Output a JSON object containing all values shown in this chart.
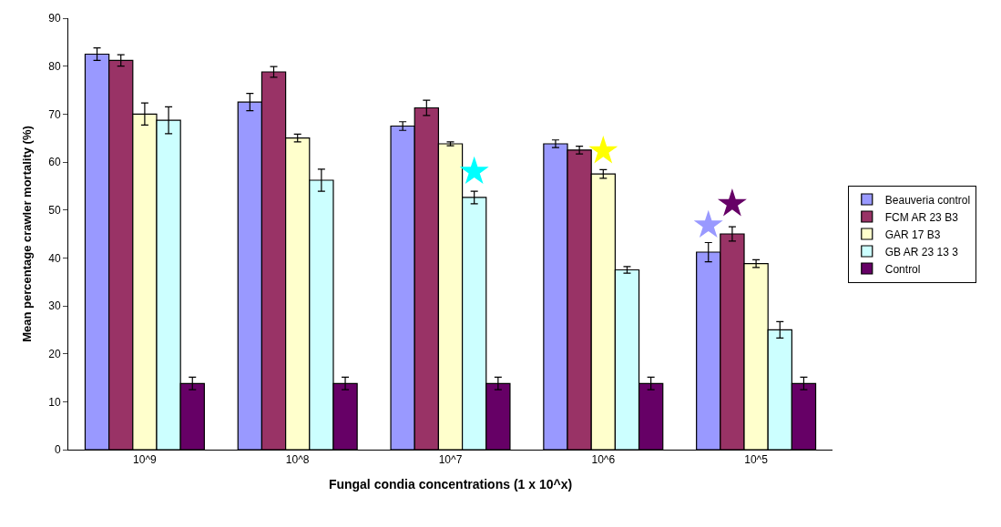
{
  "chart_data": {
    "type": "bar",
    "xlabel": "Fungal condia concentrations (1 x 10^x)",
    "ylabel": "Mean percentage crawler mortality (%)",
    "categories": [
      "10^9",
      "10^8",
      "10^7",
      "10^6",
      "10^5"
    ],
    "ylim": [
      0,
      90
    ],
    "yticks": [
      0,
      10,
      20,
      30,
      40,
      50,
      60,
      70,
      80,
      90
    ],
    "legend": "right",
    "series": [
      {
        "name": "Beauveria control",
        "color": "#9999ff",
        "values": [
          82.5,
          72.5,
          67.5,
          63.8,
          41.2
        ],
        "errors": [
          1.3,
          1.8,
          0.9,
          0.8,
          2.0
        ]
      },
      {
        "name": "FCM AR 23 B3",
        "color": "#993366",
        "values": [
          81.2,
          78.8,
          71.3,
          62.5,
          45.0
        ],
        "errors": [
          1.2,
          1.1,
          1.6,
          0.8,
          1.5
        ]
      },
      {
        "name": "GAR 17 B3",
        "color": "#ffffcc",
        "values": [
          70.0,
          65.0,
          63.8,
          57.5,
          38.8
        ],
        "errors": [
          2.3,
          0.8,
          0.4,
          0.9,
          0.8
        ]
      },
      {
        "name": "GB AR 23 13 3",
        "color": "#ccffff",
        "values": [
          68.7,
          56.2,
          52.6,
          37.5,
          25.0
        ],
        "errors": [
          2.8,
          2.3,
          1.3,
          0.7,
          1.7
        ]
      },
      {
        "name": "Control",
        "color": "#660066",
        "values": [
          13.8,
          13.8,
          13.8,
          13.8,
          13.8
        ],
        "errors": [
          1.3,
          1.3,
          1.3,
          1.3,
          1.3
        ]
      },
      {
        "type": "scatter",
        "marker": "star",
        "color": "#9999ff",
        "values": [
          null,
          null,
          null,
          null,
          46.8
        ]
      },
      {
        "type": "scatter",
        "marker": "star",
        "color": "#660066",
        "values": [
          null,
          null,
          null,
          null,
          51.3
        ]
      },
      {
        "type": "scatter",
        "marker": "star",
        "color": "#ffff00",
        "values": [
          null,
          null,
          null,
          62.3,
          null
        ]
      },
      {
        "type": "scatter",
        "marker": "star",
        "color": "#00ffff",
        "values": [
          null,
          null,
          58.0,
          null,
          null
        ]
      }
    ]
  }
}
